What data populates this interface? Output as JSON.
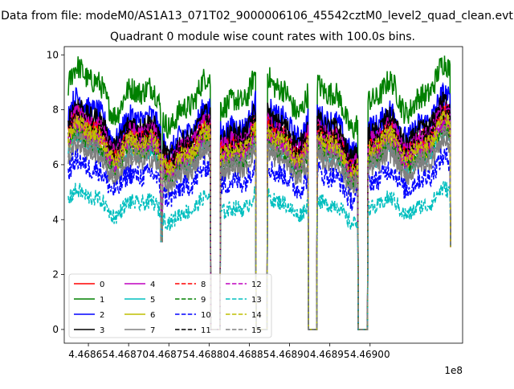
{
  "figure": {
    "suptitle": "Data from file: modeM0/AS1A13_071T02_9000006106_45542cztM0_level2_quad_clean.evt",
    "title": "Quadrant 0 module wise count rates with 100.0s bins."
  },
  "chart_data": {
    "type": "line",
    "title": "Quadrant 0 module wise count rates with 100.0s bins.",
    "xlabel": "",
    "ylabel": "",
    "x_offset_label": "1e8",
    "xlim": [
      4.46862,
      4.469115
    ],
    "ylim": [
      -0.5,
      10.3
    ],
    "grid": false,
    "legend": {
      "placement": "lower-left",
      "columns": 4
    },
    "xticks": [
      4.46865,
      4.4687,
      4.46875,
      4.4688,
      4.46885,
      4.4689,
      4.46895,
      4.469
    ],
    "xtick_labels": [
      "4.46865",
      "4.46870",
      "4.46875",
      "4.46880",
      "4.46885",
      "4.46890",
      "4.46895",
      "4.46900"
    ],
    "yticks": [
      0,
      2,
      4,
      6,
      8,
      10
    ],
    "ytick_labels": [
      "0",
      "2",
      "4",
      "6",
      "8",
      "10"
    ],
    "x_range": [
      4.468625,
      4.4691
    ],
    "gaps": [
      {
        "start": 4.46874,
        "end": 4.468742,
        "depth": 3.2
      },
      {
        "start": 4.468802,
        "end": 4.468814,
        "depth": 0
      },
      {
        "start": 4.468858,
        "end": 4.468872,
        "depth": 0
      },
      {
        "start": 4.468923,
        "end": 4.468934,
        "depth": 0
      },
      {
        "start": 4.468985,
        "end": 4.468997,
        "depth": 0
      },
      {
        "start": 4.4691,
        "end": 4.4691,
        "depth": 3
      }
    ],
    "series": [
      {
        "name": "0",
        "color": "#ff0000",
        "dash": "solid",
        "base": 7.0,
        "noise": 0.35
      },
      {
        "name": "1",
        "color": "#008000",
        "dash": "solid",
        "base": 8.5,
        "noise": 0.45
      },
      {
        "name": "2",
        "color": "#0000ff",
        "dash": "solid",
        "base": 7.5,
        "noise": 0.45
      },
      {
        "name": "3",
        "color": "#000000",
        "dash": "solid",
        "base": 7.3,
        "noise": 0.35
      },
      {
        "name": "4",
        "color": "#bf00bf",
        "dash": "solid",
        "base": 7.0,
        "noise": 0.35
      },
      {
        "name": "5",
        "color": "#00bfbf",
        "dash": "solid",
        "base": 6.3,
        "noise": 0.35
      },
      {
        "name": "6",
        "color": "#bfbf00",
        "dash": "solid",
        "base": 6.5,
        "noise": 0.35
      },
      {
        "name": "7",
        "color": "#808080",
        "dash": "solid",
        "base": 6.0,
        "noise": 0.35
      },
      {
        "name": "8",
        "color": "#ff0000",
        "dash": "dashed",
        "base": 6.8,
        "noise": 0.35
      },
      {
        "name": "9",
        "color": "#008000",
        "dash": "dashed",
        "base": 6.4,
        "noise": 0.35
      },
      {
        "name": "10",
        "color": "#0000ff",
        "dash": "dashed",
        "base": 5.5,
        "noise": 0.4
      },
      {
        "name": "11",
        "color": "#000000",
        "dash": "dashed",
        "base": 6.9,
        "noise": 0.35
      },
      {
        "name": "12",
        "color": "#bf00bf",
        "dash": "dashed",
        "base": 6.6,
        "noise": 0.35
      },
      {
        "name": "13",
        "color": "#00bfbf",
        "dash": "dashed",
        "base": 4.5,
        "noise": 0.3
      },
      {
        "name": "14",
        "color": "#bfbf00",
        "dash": "dashed",
        "base": 6.7,
        "noise": 0.35
      },
      {
        "name": "15",
        "color": "#808080",
        "dash": "dashed",
        "base": 6.2,
        "noise": 0.35
      }
    ]
  }
}
